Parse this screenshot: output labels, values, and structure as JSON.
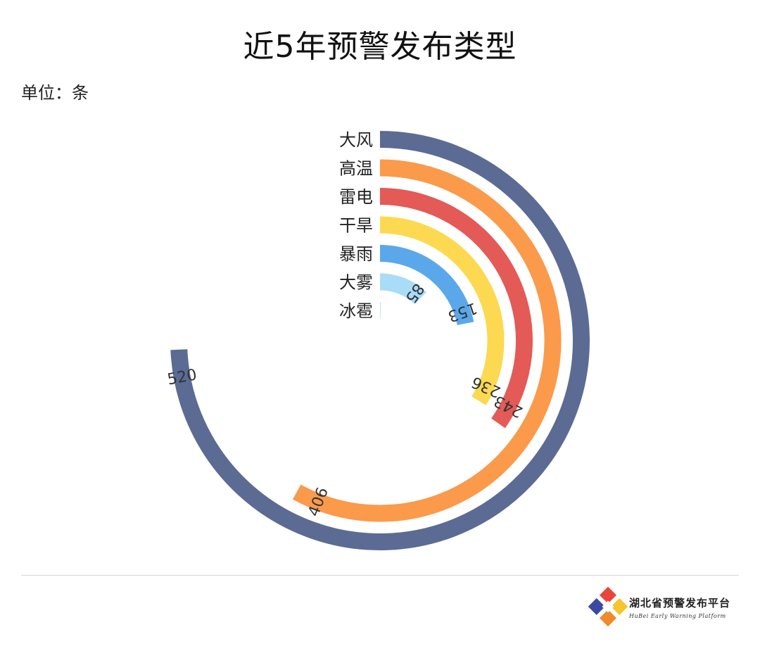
{
  "title": "近5年预警发布类型",
  "unit_label": "单位：条",
  "footer": {
    "brand_cn": "湖北省预警发布平台",
    "brand_en": "HuBei Early Warning Platform"
  },
  "colors": {
    "background": "#ffffff",
    "divider": "#d6d6d6",
    "logo": [
      "#e8463b",
      "#f6c62f",
      "#3b4aa0",
      "#f08a2a"
    ]
  },
  "chart_data": {
    "type": "radial-bar",
    "title": "近5年预警发布类型",
    "unit": "条",
    "max": 700,
    "start": "top (12 o'clock), clockwise",
    "categories": [
      "大风",
      "高温",
      "雷电",
      "干旱",
      "暴雨",
      "大雾",
      "冰雹"
    ],
    "values": [
      520,
      406,
      243,
      236,
      153,
      85,
      1
    ],
    "value_labels": [
      "520",
      "406",
      "243",
      "236",
      "153",
      "85",
      ""
    ],
    "colors": [
      "#5b6b94",
      "#fb9a4b",
      "#e35a57",
      "#fcd950",
      "#5aa8ea",
      "#a9dcf7",
      "#5cc6a1"
    ]
  }
}
